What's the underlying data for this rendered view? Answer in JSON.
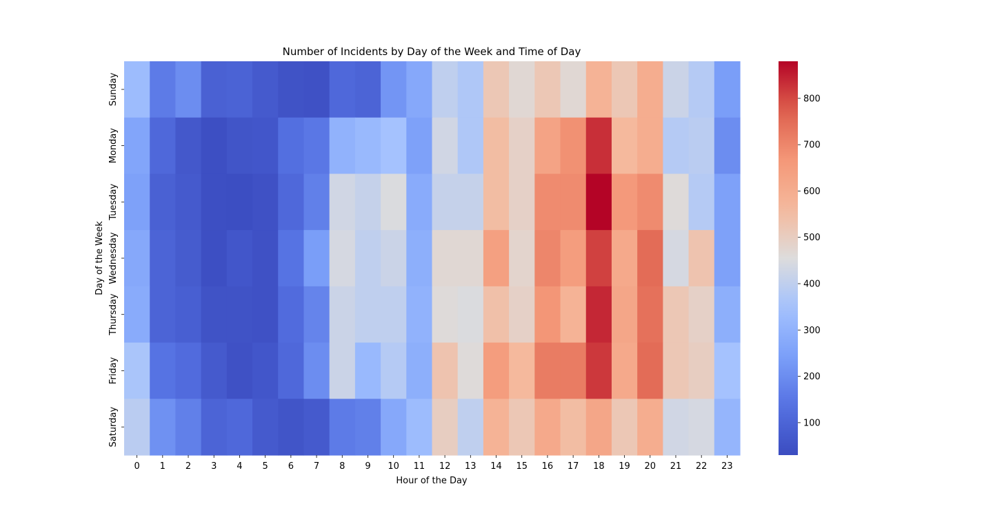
{
  "chart_data": {
    "type": "heatmap",
    "title": "Number of Incidents by Day of the Week and Time of Day",
    "xlabel": "Hour of the Day",
    "ylabel": "Day of the Week",
    "x_categories": [
      "0",
      "1",
      "2",
      "3",
      "4",
      "5",
      "6",
      "7",
      "8",
      "9",
      "10",
      "11",
      "12",
      "13",
      "14",
      "15",
      "16",
      "17",
      "18",
      "19",
      "20",
      "21",
      "22",
      "23"
    ],
    "y_categories": [
      "Sunday",
      "Monday",
      "Tuesday",
      "Wednesday",
      "Thursday",
      "Friday",
      "Saturday"
    ],
    "values": [
      [
        330,
        160,
        200,
        90,
        95,
        70,
        50,
        45,
        110,
        100,
        220,
        270,
        400,
        370,
        520,
        470,
        520,
        470,
        580,
        520,
        600,
        420,
        380,
        240
      ],
      [
        260,
        110,
        65,
        40,
        55,
        60,
        130,
        150,
        300,
        320,
        350,
        250,
        430,
        370,
        550,
        490,
        630,
        680,
        830,
        560,
        600,
        380,
        390,
        200
      ],
      [
        250,
        90,
        70,
        40,
        35,
        45,
        110,
        170,
        430,
        410,
        450,
        280,
        410,
        410,
        550,
        490,
        690,
        690,
        880,
        660,
        690,
        460,
        380,
        250
      ],
      [
        270,
        100,
        75,
        40,
        60,
        45,
        140,
        240,
        440,
        400,
        420,
        290,
        470,
        470,
        640,
        480,
        700,
        650,
        810,
        610,
        750,
        440,
        530,
        250
      ],
      [
        280,
        100,
        85,
        50,
        50,
        45,
        120,
        180,
        420,
        400,
        400,
        300,
        460,
        450,
        540,
        490,
        670,
        580,
        840,
        620,
        740,
        520,
        490,
        290
      ],
      [
        360,
        140,
        120,
        70,
        45,
        60,
        110,
        200,
        420,
        320,
        380,
        290,
        530,
        460,
        650,
        560,
        720,
        720,
        820,
        610,
        750,
        520,
        500,
        350
      ],
      [
        390,
        210,
        170,
        100,
        110,
        70,
        55,
        70,
        160,
        170,
        270,
        330,
        500,
        400,
        580,
        520,
        610,
        550,
        620,
        520,
        600,
        430,
        440,
        310
      ]
    ],
    "colorbar": {
      "cmap": "coolwarm",
      "range": [
        30,
        880
      ],
      "ticks": [
        "100",
        "200",
        "300",
        "400",
        "500",
        "600",
        "700",
        "800"
      ]
    }
  }
}
